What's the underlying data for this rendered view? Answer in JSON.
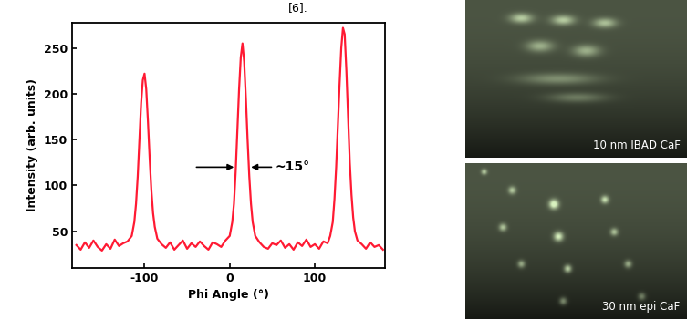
{
  "caption": "[6].",
  "chart_data": {
    "type": "line",
    "x_label": "Phi Angle (°)",
    "y_label": "Intensity (arb. units)",
    "color": "#ff1a33",
    "x": [
      -180,
      -175,
      -170,
      -165,
      -160,
      -155,
      -150,
      -145,
      -140,
      -135,
      -130,
      -125,
      -120,
      -115,
      -112,
      -110,
      -108,
      -106,
      -104,
      -102,
      -100,
      -98,
      -96,
      -94,
      -92,
      -90,
      -88,
      -85,
      -80,
      -75,
      -70,
      -65,
      -60,
      -55,
      -50,
      -45,
      -40,
      -35,
      -30,
      -25,
      -20,
      -15,
      -10,
      -5,
      0,
      3,
      5,
      7,
      9,
      11,
      13,
      15,
      17,
      19,
      21,
      23,
      25,
      27,
      30,
      35,
      40,
      45,
      50,
      55,
      60,
      65,
      70,
      75,
      80,
      85,
      90,
      95,
      100,
      105,
      110,
      115,
      118,
      121,
      123,
      125,
      127,
      129,
      131,
      133,
      135,
      137,
      139,
      141,
      143,
      145,
      147,
      150,
      155,
      160,
      165,
      170,
      175,
      180
    ],
    "values": [
      35,
      30,
      38,
      32,
      40,
      33,
      29,
      36,
      31,
      41,
      34,
      37,
      39,
      45,
      60,
      80,
      110,
      150,
      190,
      215,
      222,
      205,
      170,
      130,
      95,
      70,
      55,
      42,
      36,
      32,
      38,
      30,
      35,
      40,
      31,
      37,
      33,
      39,
      34,
      30,
      38,
      36,
      33,
      40,
      45,
      60,
      80,
      115,
      160,
      205,
      240,
      255,
      235,
      195,
      150,
      110,
      80,
      60,
      45,
      38,
      33,
      31,
      37,
      35,
      40,
      32,
      36,
      30,
      38,
      34,
      41,
      33,
      36,
      31,
      39,
      37,
      45,
      60,
      85,
      120,
      165,
      210,
      250,
      272,
      265,
      225,
      175,
      125,
      90,
      65,
      50,
      40,
      36,
      31,
      38,
      33,
      35,
      30
    ],
    "xlim": [
      -185,
      182
    ],
    "xticks": [
      -100,
      0,
      100
    ],
    "ylim": [
      10,
      278
    ],
    "yticks": [
      50,
      100,
      150,
      200,
      250
    ],
    "annotations": [
      {
        "text": "~15°",
        "x": [
          8,
          22
        ],
        "y": 120
      }
    ]
  },
  "images": [
    {
      "label": "10 nm IBAD CaF"
    },
    {
      "label": "30 nm epi CaF"
    }
  ]
}
